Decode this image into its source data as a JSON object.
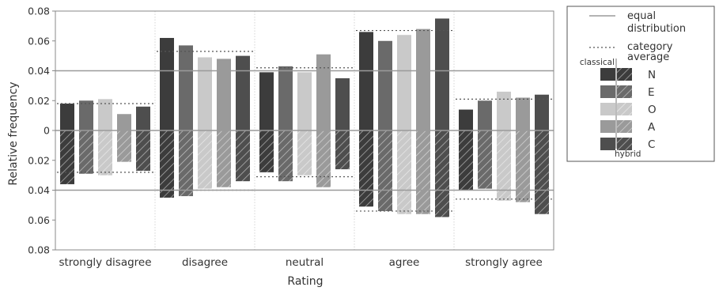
{
  "chart_data": {
    "type": "bar",
    "xlabel": "Rating",
    "ylabel": "Relative frequency",
    "ylim": [
      -0.08,
      0.08
    ],
    "yticks": [
      {
        "value": 0.08,
        "label": "0.08"
      },
      {
        "value": 0.06,
        "label": "0.06"
      },
      {
        "value": 0.04,
        "label": "0.04"
      },
      {
        "value": 0.02,
        "label": "0.02"
      },
      {
        "value": 0,
        "label": "0"
      },
      {
        "value": -0.02,
        "label": "0.02"
      },
      {
        "value": -0.04,
        "label": "0.04"
      },
      {
        "value": -0.06,
        "label": "0.06"
      },
      {
        "value": -0.08,
        "label": "0.08"
      }
    ],
    "categories": [
      "strongly disagree",
      "disagree",
      "neutral",
      "agree",
      "strongly agree"
    ],
    "equal_distribution": 0.04,
    "series": [
      {
        "name": "N",
        "classical": [
          0.018,
          0.062,
          0.039,
          0.066,
          0.014
        ],
        "hybrid": [
          0.036,
          0.045,
          0.028,
          0.051,
          0.04
        ]
      },
      {
        "name": "E",
        "classical": [
          0.02,
          0.057,
          0.043,
          0.06,
          0.02
        ],
        "hybrid": [
          0.029,
          0.044,
          0.034,
          0.054,
          0.039
        ]
      },
      {
        "name": "O",
        "classical": [
          0.021,
          0.049,
          0.039,
          0.064,
          0.026
        ],
        "hybrid": [
          0.03,
          0.039,
          0.03,
          0.056,
          0.047
        ]
      },
      {
        "name": "A",
        "classical": [
          0.011,
          0.048,
          0.051,
          0.068,
          0.022
        ],
        "hybrid": [
          0.021,
          0.038,
          0.038,
          0.056,
          0.048
        ]
      },
      {
        "name": "C",
        "classical": [
          0.016,
          0.05,
          0.035,
          0.075,
          0.024
        ],
        "hybrid": [
          0.027,
          0.034,
          0.026,
          0.058,
          0.056
        ]
      }
    ],
    "category_average_classical": [
      0.018,
      0.053,
      0.042,
      0.067,
      0.021
    ],
    "category_average_hybrid": [
      0.028,
      0.04,
      0.031,
      0.054,
      0.046
    ],
    "legend": {
      "position": "right",
      "equal_label": "equal distribution",
      "average_label": "category average",
      "classical_label": "classical",
      "hybrid_label": "hybrid"
    },
    "colors": {
      "N": "#3c3c3c",
      "E": "#6a6a6a",
      "O": "#c9c9c9",
      "A": "#9a9a9a",
      "C": "#4e4e4e",
      "reference_line": "#9a9a9a",
      "average_line": "#555555",
      "grid": "#d4d4d4"
    },
    "grid": true
  }
}
